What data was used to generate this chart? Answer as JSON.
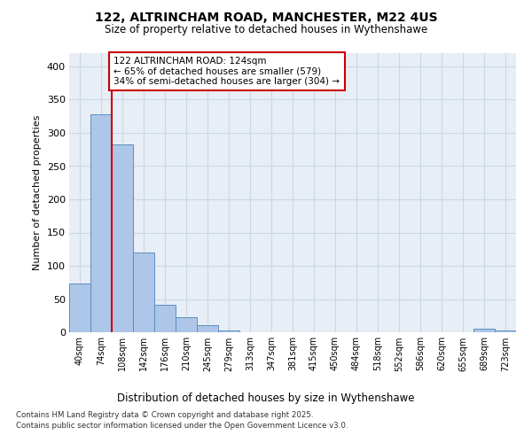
{
  "title_line1": "122, ALTRINCHAM ROAD, MANCHESTER, M22 4US",
  "title_line2": "Size of property relative to detached houses in Wythenshawe",
  "xlabel": "Distribution of detached houses by size in Wythenshawe",
  "ylabel": "Number of detached properties",
  "categories": [
    "40sqm",
    "74sqm",
    "108sqm",
    "142sqm",
    "176sqm",
    "210sqm",
    "245sqm",
    "279sqm",
    "313sqm",
    "347sqm",
    "381sqm",
    "415sqm",
    "450sqm",
    "484sqm",
    "518sqm",
    "552sqm",
    "586sqm",
    "620sqm",
    "655sqm",
    "689sqm",
    "723sqm"
  ],
  "values": [
    73,
    328,
    283,
    120,
    42,
    23,
    11,
    3,
    0,
    0,
    0,
    0,
    0,
    0,
    0,
    0,
    0,
    0,
    0,
    5,
    3
  ],
  "bar_color": "#aec6e8",
  "bar_edge_color": "#5a8fc0",
  "vline_x": 1.5,
  "vline_color": "#cc0000",
  "annotation_text": "122 ALTRINCHAM ROAD: 124sqm\n← 65% of detached houses are smaller (579)\n34% of semi-detached houses are larger (304) →",
  "annotation_box_color": "#cc0000",
  "ylim": [
    0,
    420
  ],
  "yticks": [
    0,
    50,
    100,
    150,
    200,
    250,
    300,
    350,
    400
  ],
  "grid_color": "#c8d8e8",
  "background_color": "#e8eef5",
  "footer_line1": "Contains HM Land Registry data © Crown copyright and database right 2025.",
  "footer_line2": "Contains public sector information licensed under the Open Government Licence v3.0."
}
